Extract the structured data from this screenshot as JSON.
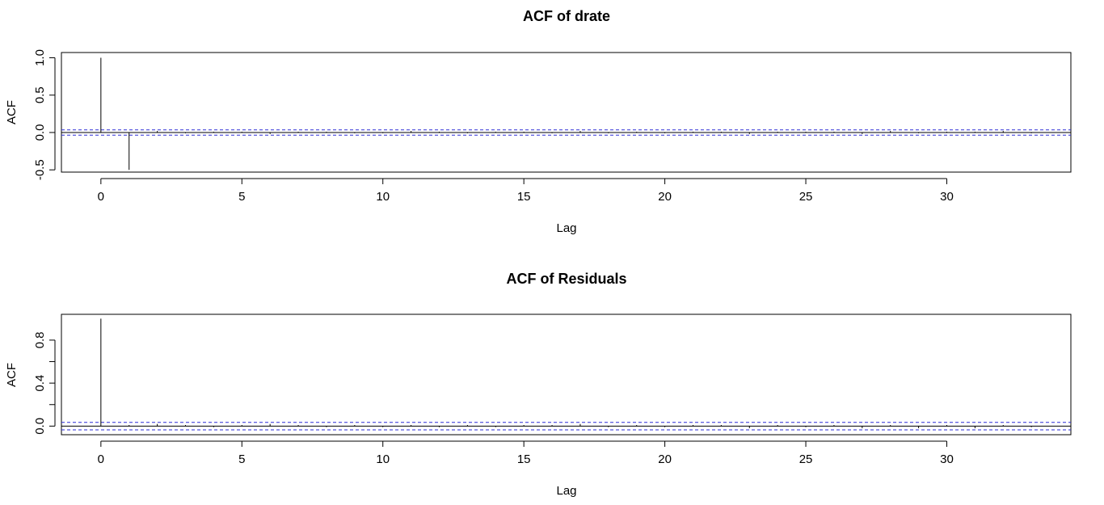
{
  "chart_data": [
    {
      "type": "bar",
      "title": "ACF of drate",
      "xlabel": "Lag",
      "ylabel": "ACF",
      "xlim": [
        -1.4,
        34.4
      ],
      "ylim": [
        -0.53,
        1.07
      ],
      "xticks": [
        0,
        5,
        10,
        15,
        20,
        25,
        30
      ],
      "xtick_labels": [
        "0",
        "5",
        "10",
        "15",
        "20",
        "25",
        "30"
      ],
      "yticks": [
        -0.5,
        0.0,
        0.5,
        1.0
      ],
      "ytick_labels": [
        "-0.5",
        "0.0",
        "0.5",
        "1.0"
      ],
      "conf_bound": 0.035,
      "lags": [
        0,
        1,
        2,
        3,
        4,
        5,
        6,
        7,
        8,
        9,
        10,
        11,
        12,
        13,
        14,
        15,
        16,
        17,
        18,
        19,
        20,
        21,
        22,
        23,
        24,
        25,
        26,
        27,
        28,
        29,
        30,
        31,
        32,
        33
      ],
      "values": [
        1.0,
        -0.5,
        0.02,
        -0.01,
        0.01,
        0.01,
        -0.02,
        0.01,
        0.01,
        -0.01,
        -0.01,
        0.02,
        0.01,
        -0.01,
        0.01,
        0.01,
        -0.01,
        0.02,
        -0.01,
        0.01,
        -0.01,
        0.01,
        0.01,
        -0.02,
        0.01,
        0.01,
        0.01,
        -0.02,
        0.02,
        -0.01,
        0.01,
        0.01,
        0.02,
        -0.01
      ]
    },
    {
      "type": "bar",
      "title": "ACF of Residuals",
      "xlabel": "Lag",
      "ylabel": "ACF",
      "xlim": [
        -1.4,
        34.4
      ],
      "ylim": [
        -0.08,
        1.04
      ],
      "xticks": [
        0,
        5,
        10,
        15,
        20,
        25,
        30
      ],
      "xtick_labels": [
        "0",
        "5",
        "10",
        "15",
        "20",
        "25",
        "30"
      ],
      "yticks": [
        0.0,
        0.2,
        0.4,
        0.6,
        0.8
      ],
      "ytick_labels": [
        "0.0",
        "",
        "0.4",
        "",
        "0.8"
      ],
      "conf_bound": 0.035,
      "lags": [
        0,
        1,
        2,
        3,
        4,
        5,
        6,
        7,
        8,
        9,
        10,
        11,
        12,
        13,
        14,
        15,
        16,
        17,
        18,
        19,
        20,
        21,
        22,
        23,
        24,
        25,
        26,
        27,
        28,
        29,
        30,
        31,
        32,
        33
      ],
      "values": [
        1.0,
        0.01,
        0.02,
        0.01,
        -0.01,
        0.01,
        0.02,
        0.01,
        -0.01,
        0.01,
        -0.01,
        0.01,
        -0.01,
        0.01,
        -0.01,
        0.01,
        0.01,
        0.02,
        -0.01,
        0.01,
        -0.01,
        0.01,
        0.01,
        -0.02,
        0.01,
        -0.01,
        0.01,
        -0.02,
        0.01,
        -0.02,
        0.01,
        -0.02,
        0.01,
        -0.01
      ]
    }
  ]
}
